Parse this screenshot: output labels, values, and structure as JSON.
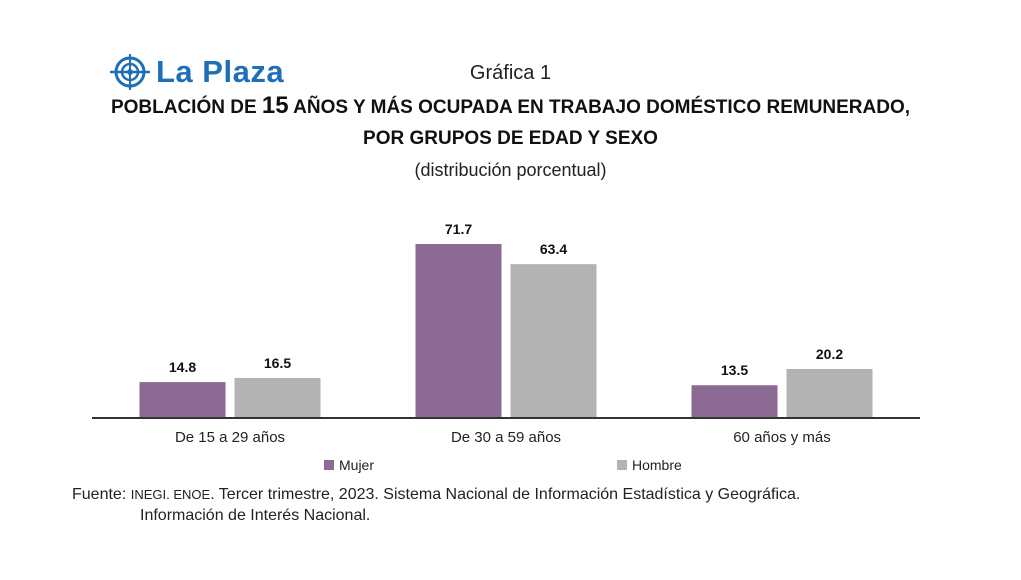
{
  "logo": {
    "text": "La Plaza",
    "icon": "globe-target-icon"
  },
  "header": {
    "chart_label": "Gráfica 1",
    "title_pre": "POBLACIÓN DE ",
    "title_num": "15",
    "title_post": " AÑOS Y MÁS OCUPADA EN TRABAJO DOMÉSTICO REMUNERADO,",
    "title_line2": "POR GRUPOS DE EDAD Y SEXO",
    "subtitle": "(distribución porcentual)"
  },
  "chart_data": {
    "type": "bar",
    "title": "POBLACIÓN DE 15 AÑOS Y MÁS OCUPADA EN TRABAJO DOMÉSTICO REMUNERADO, POR GRUPOS DE EDAD Y SEXO",
    "subtitle": "(distribución porcentual)",
    "categories": [
      "De 15 a 29 años",
      "De 30 a 59 años",
      "60 años y más"
    ],
    "series": [
      {
        "name": "Mujer",
        "values": [
          14.8,
          71.7,
          13.5
        ],
        "color": "#8b6a93"
      },
      {
        "name": "Hombre",
        "values": [
          16.5,
          63.4,
          20.2
        ],
        "color": "#b3b3b3"
      }
    ],
    "ylim": [
      0,
      72
    ],
    "grid": false,
    "legend": "bottom",
    "data_labels": true
  },
  "source": {
    "label": "Fuente:",
    "org": "INEGI. ENOE",
    "text": ". Tercer trimestre, 2023. Sistema Nacional de Información Estadística y Geográfica.",
    "line2": "Información de Interés Nacional."
  }
}
